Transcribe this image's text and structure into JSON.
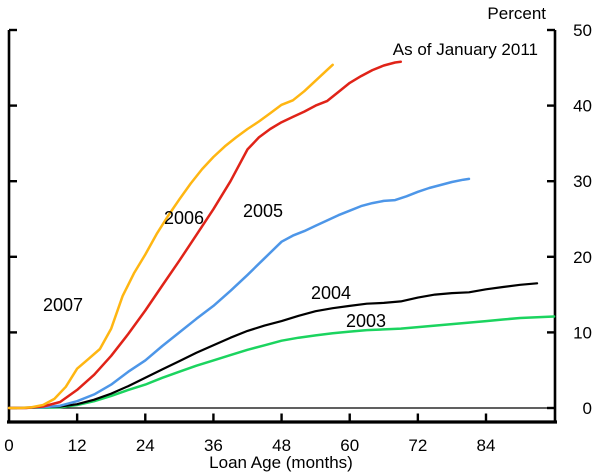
{
  "chart_data": {
    "type": "line",
    "percent_label": "Percent",
    "annotation": "As of January 2011",
    "xlabel": "Loan Age (months)",
    "x_ticks": [
      0,
      12,
      24,
      36,
      48,
      60,
      72,
      84
    ],
    "y_ticks": [
      0,
      10,
      20,
      30,
      40,
      50
    ],
    "xlim": [
      0,
      96
    ],
    "ylim": [
      0,
      50
    ],
    "grid": false,
    "legend_position": "inline-labels",
    "series": [
      {
        "name": "2003",
        "color": "#1BD45F",
        "points": [
          [
            0,
            0
          ],
          [
            6,
            0.05
          ],
          [
            9,
            0.1
          ],
          [
            12,
            0.4
          ],
          [
            15,
            0.9
          ],
          [
            18,
            1.6
          ],
          [
            21,
            2.4
          ],
          [
            24,
            3.1
          ],
          [
            27,
            4.0
          ],
          [
            30,
            4.8
          ],
          [
            33,
            5.6
          ],
          [
            36,
            6.3
          ],
          [
            39,
            7.0
          ],
          [
            42,
            7.7
          ],
          [
            45,
            8.3
          ],
          [
            48,
            8.9
          ],
          [
            51,
            9.3
          ],
          [
            54,
            9.6
          ],
          [
            57,
            9.9
          ],
          [
            60,
            10.1
          ],
          [
            63,
            10.3
          ],
          [
            66,
            10.4
          ],
          [
            69,
            10.5
          ],
          [
            72,
            10.7
          ],
          [
            75,
            10.9
          ],
          [
            78,
            11.1
          ],
          [
            81,
            11.3
          ],
          [
            84,
            11.5
          ],
          [
            87,
            11.7
          ],
          [
            90,
            11.9
          ],
          [
            93,
            12.0
          ],
          [
            96,
            12.1
          ]
        ]
      },
      {
        "name": "2004",
        "color": "#000000",
        "points": [
          [
            0,
            0
          ],
          [
            6,
            0.1
          ],
          [
            9,
            0.2
          ],
          [
            12,
            0.5
          ],
          [
            15,
            1.1
          ],
          [
            18,
            1.9
          ],
          [
            21,
            2.9
          ],
          [
            24,
            4.0
          ],
          [
            27,
            5.1
          ],
          [
            30,
            6.2
          ],
          [
            33,
            7.3
          ],
          [
            36,
            8.3
          ],
          [
            39,
            9.3
          ],
          [
            42,
            10.2
          ],
          [
            45,
            10.9
          ],
          [
            48,
            11.5
          ],
          [
            51,
            12.2
          ],
          [
            54,
            12.8
          ],
          [
            57,
            13.2
          ],
          [
            60,
            13.5
          ],
          [
            63,
            13.8
          ],
          [
            66,
            13.9
          ],
          [
            69,
            14.1
          ],
          [
            72,
            14.6
          ],
          [
            75,
            15.0
          ],
          [
            78,
            15.2
          ],
          [
            81,
            15.3
          ],
          [
            84,
            15.7
          ],
          [
            87,
            16.0
          ],
          [
            90,
            16.3
          ],
          [
            93,
            16.5
          ]
        ]
      },
      {
        "name": "2005",
        "color": "#4D96E8",
        "points": [
          [
            0,
            0
          ],
          [
            6,
            0.1
          ],
          [
            9,
            0.3
          ],
          [
            12,
            0.9
          ],
          [
            15,
            1.8
          ],
          [
            18,
            3.1
          ],
          [
            21,
            4.8
          ],
          [
            24,
            6.3
          ],
          [
            27,
            8.2
          ],
          [
            30,
            10.0
          ],
          [
            33,
            11.8
          ],
          [
            36,
            13.5
          ],
          [
            39,
            15.5
          ],
          [
            42,
            17.6
          ],
          [
            45,
            19.8
          ],
          [
            48,
            22.0
          ],
          [
            50,
            22.8
          ],
          [
            52,
            23.4
          ],
          [
            54,
            24.1
          ],
          [
            56,
            24.8
          ],
          [
            58,
            25.5
          ],
          [
            60,
            26.1
          ],
          [
            62,
            26.7
          ],
          [
            64,
            27.1
          ],
          [
            66,
            27.4
          ],
          [
            68,
            27.5
          ],
          [
            70,
            28.0
          ],
          [
            72,
            28.6
          ],
          [
            74,
            29.1
          ],
          [
            76,
            29.5
          ],
          [
            78,
            29.9
          ],
          [
            80,
            30.2
          ],
          [
            81,
            30.3
          ]
        ]
      },
      {
        "name": "2006",
        "color": "#E02318",
        "points": [
          [
            0,
            0
          ],
          [
            3,
            0
          ],
          [
            6,
            0.2
          ],
          [
            9,
            0.8
          ],
          [
            12,
            2.4
          ],
          [
            15,
            4.4
          ],
          [
            18,
            6.9
          ],
          [
            21,
            9.8
          ],
          [
            24,
            12.9
          ],
          [
            27,
            16.2
          ],
          [
            30,
            19.5
          ],
          [
            33,
            22.9
          ],
          [
            36,
            26.3
          ],
          [
            39,
            30.0
          ],
          [
            42,
            34.2
          ],
          [
            44,
            35.8
          ],
          [
            46,
            36.9
          ],
          [
            48,
            37.8
          ],
          [
            50,
            38.5
          ],
          [
            52,
            39.2
          ],
          [
            54,
            40.0
          ],
          [
            56,
            40.6
          ],
          [
            58,
            41.8
          ],
          [
            60,
            43.0
          ],
          [
            62,
            43.9
          ],
          [
            64,
            44.7
          ],
          [
            66,
            45.3
          ],
          [
            68,
            45.7
          ],
          [
            69,
            45.8
          ]
        ]
      },
      {
        "name": "2007",
        "color": "#FFB612",
        "points": [
          [
            0,
            0
          ],
          [
            2,
            0
          ],
          [
            4,
            0.1
          ],
          [
            6,
            0.4
          ],
          [
            8,
            1.2
          ],
          [
            10,
            2.8
          ],
          [
            12,
            5.2
          ],
          [
            14,
            6.5
          ],
          [
            16,
            7.8
          ],
          [
            18,
            10.5
          ],
          [
            20,
            14.8
          ],
          [
            22,
            17.8
          ],
          [
            24,
            20.3
          ],
          [
            26,
            23.0
          ],
          [
            28,
            25.4
          ],
          [
            30,
            27.6
          ],
          [
            32,
            29.7
          ],
          [
            34,
            31.6
          ],
          [
            36,
            33.2
          ],
          [
            38,
            34.6
          ],
          [
            40,
            35.8
          ],
          [
            42,
            36.9
          ],
          [
            44,
            37.9
          ],
          [
            46,
            39.0
          ],
          [
            48,
            40.1
          ],
          [
            50,
            40.7
          ],
          [
            52,
            41.9
          ],
          [
            54,
            43.3
          ],
          [
            56,
            44.7
          ],
          [
            57,
            45.4
          ]
        ]
      }
    ]
  }
}
